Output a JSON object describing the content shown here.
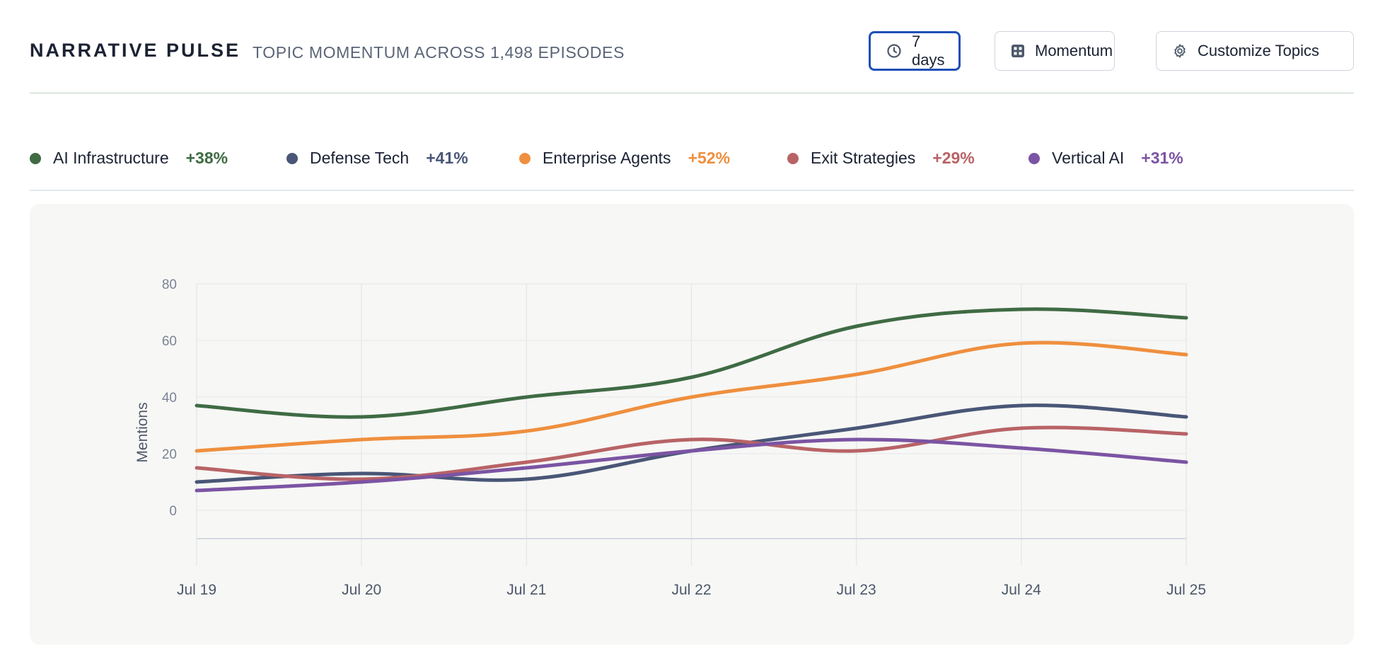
{
  "header": {
    "title": "NARRATIVE PULSE",
    "subtitle": "TOPIC MOMENTUM ACROSS 1,498 EPISODES",
    "buttons": {
      "range": {
        "label": "7 days",
        "icon": "clock-icon"
      },
      "momentum": {
        "label": "Momentum",
        "icon": "grid-icon"
      },
      "customize": {
        "label": "Customize Topics",
        "icon": "gear-icon"
      }
    },
    "active_button_color": "#1f4fb6"
  },
  "legend": [
    {
      "label": "AI Infrastructure",
      "change": "+38%",
      "color": "#3f6b44"
    },
    {
      "label": "Defense Tech",
      "change": "+41%",
      "color": "#495677"
    },
    {
      "label": "Enterprise Agents",
      "change": "+52%",
      "color": "#ef8f3e"
    },
    {
      "label": "Exit Strategies",
      "change": "+29%",
      "color": "#b86366"
    },
    {
      "label": "Vertical AI",
      "change": "+31%",
      "color": "#7b54a3"
    }
  ],
  "chart_data": {
    "type": "line",
    "title": "",
    "xlabel": "",
    "ylabel": "Mentions",
    "categories": [
      "Jul 19",
      "Jul 20",
      "Jul 21",
      "Jul 22",
      "Jul 23",
      "Jul 24",
      "Jul 25"
    ],
    "yticks": [
      0,
      20,
      40,
      60,
      80
    ],
    "ylim": [
      -10,
      80
    ],
    "grid": true,
    "series": [
      {
        "name": "AI Infrastructure",
        "color": "#3f6b44",
        "values": [
          37,
          33,
          40,
          47,
          65,
          71,
          68
        ]
      },
      {
        "name": "Defense Tech",
        "color": "#495677",
        "values": [
          10,
          13,
          11,
          21,
          29,
          37,
          33
        ]
      },
      {
        "name": "Enterprise Agents",
        "color": "#ef8f3e",
        "values": [
          21,
          25,
          28,
          40,
          48,
          59,
          55
        ]
      },
      {
        "name": "Exit Strategies",
        "color": "#b86366",
        "values": [
          15,
          11,
          17,
          25,
          21,
          29,
          27
        ]
      },
      {
        "name": "Vertical AI",
        "color": "#7b54a3",
        "values": [
          7,
          10,
          15,
          21,
          25,
          22,
          17
        ]
      }
    ]
  }
}
